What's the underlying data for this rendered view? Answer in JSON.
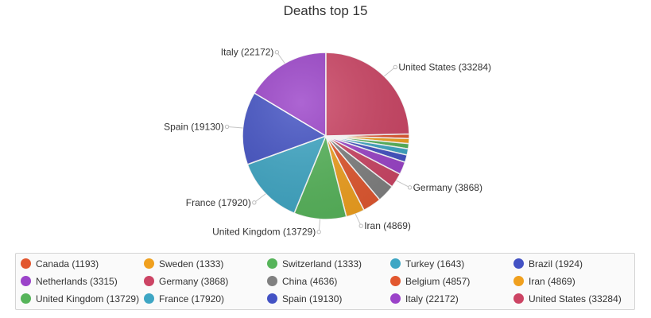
{
  "chart_data": {
    "type": "pie",
    "title": "Deaths top 15",
    "legend_position": "bottom",
    "slices": [
      {
        "label": "Canada (1193)",
        "name": "Canada",
        "value": 1193,
        "color": "#e2572f"
      },
      {
        "label": "Sweden (1333)",
        "name": "Sweden",
        "value": 1333,
        "color": "#f0a01e"
      },
      {
        "label": "Switzerland (1333)",
        "name": "Switzerland",
        "value": 1333,
        "color": "#56b45a"
      },
      {
        "label": "Turkey (1643)",
        "name": "Turkey",
        "value": 1643,
        "color": "#3ea6c4"
      },
      {
        "label": "Brazil (1924)",
        "name": "Brazil",
        "value": 1924,
        "color": "#4352c4"
      },
      {
        "label": "Netherlands (3315)",
        "name": "Netherlands",
        "value": 3315,
        "color": "#9b43c9"
      },
      {
        "label": "Germany (3868)",
        "name": "Germany",
        "value": 3868,
        "color": "#cc4464"
      },
      {
        "label": "China (4636)",
        "name": "China",
        "value": 4636,
        "color": "#808080"
      },
      {
        "label": "Belgium (4857)",
        "name": "Belgium",
        "value": 4857,
        "color": "#e2572f"
      },
      {
        "label": "Iran (4869)",
        "name": "Iran",
        "value": 4869,
        "color": "#f0a01e"
      },
      {
        "label": "United Kingdom (13729)",
        "name": "United Kingdom",
        "value": 13729,
        "color": "#56b45a"
      },
      {
        "label": "France (17920)",
        "name": "France",
        "value": 17920,
        "color": "#3ea6c4"
      },
      {
        "label": "Spain (19130)",
        "name": "Spain",
        "value": 19130,
        "color": "#4352c4"
      },
      {
        "label": "Italy (22172)",
        "name": "Italy",
        "value": 22172,
        "color": "#9b43c9"
      },
      {
        "label": "United States (33284)",
        "name": "United States",
        "value": 33284,
        "color": "#cc4464"
      }
    ],
    "callout_labels": [
      "United States (33284)",
      "Italy (22172)",
      "Spain (19130)",
      "France (17920)",
      "United Kingdom (13729)",
      "Iran (4869)",
      "Germany (3868)"
    ]
  }
}
